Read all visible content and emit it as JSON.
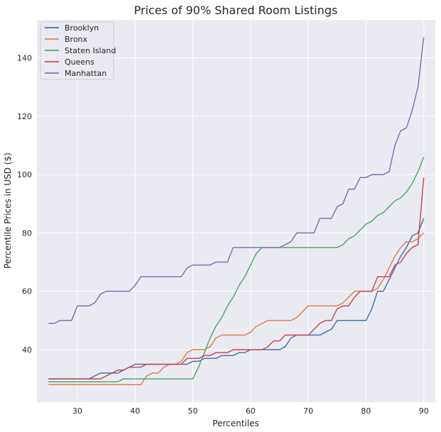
{
  "chart_data": {
    "type": "line",
    "title": "Prices of 90% Shared Room Listings",
    "xlabel": "Percentiles",
    "ylabel": "Percentile Prices in USD ($)",
    "xlim": [
      23,
      92
    ],
    "ylim": [
      22,
      153
    ],
    "xticks": [
      30,
      40,
      50,
      60,
      70,
      80,
      90
    ],
    "yticks": [
      40,
      60,
      80,
      100,
      120,
      140
    ],
    "grid": true,
    "legend_position": "top-left",
    "colors": {
      "background": "#eaeaf2",
      "grid": "#ffffff"
    },
    "x": [
      25,
      26,
      27,
      28,
      29,
      30,
      31,
      32,
      33,
      34,
      35,
      36,
      37,
      38,
      39,
      40,
      41,
      42,
      43,
      44,
      45,
      46,
      47,
      48,
      49,
      50,
      51,
      52,
      53,
      54,
      55,
      56,
      57,
      58,
      59,
      60,
      61,
      62,
      63,
      64,
      65,
      66,
      67,
      68,
      69,
      70,
      71,
      72,
      73,
      74,
      75,
      76,
      77,
      78,
      79,
      80,
      81,
      82,
      83,
      84,
      85,
      86,
      87,
      88,
      89,
      90
    ],
    "series": [
      {
        "name": "Brooklyn",
        "color": "#4c72b0",
        "values": [
          30,
          30,
          30,
          30,
          30,
          30,
          30,
          30,
          31,
          32,
          32,
          32,
          32,
          33,
          34,
          35,
          35,
          35,
          35,
          35,
          35,
          35,
          35,
          35,
          35,
          36,
          36,
          37,
          37,
          37,
          38,
          38,
          38,
          39,
          39,
          40,
          40,
          40,
          40,
          40,
          40,
          41,
          44,
          45,
          45,
          45,
          45,
          45,
          46,
          47,
          50,
          50,
          50,
          50,
          50,
          50,
          54,
          60,
          60,
          64,
          68,
          72,
          75,
          79,
          80,
          85
        ]
      },
      {
        "name": "Bronx",
        "color": "#dd8452",
        "values": [
          28,
          28,
          28,
          28,
          28,
          28,
          28,
          28,
          28,
          28,
          28,
          28,
          28,
          28,
          28,
          28,
          28,
          31,
          32,
          32,
          34,
          35,
          35,
          36,
          39,
          40,
          40,
          40,
          41,
          44,
          45,
          45,
          45,
          45,
          45,
          46,
          48,
          49,
          50,
          50,
          50,
          50,
          50,
          51,
          53,
          55,
          55,
          55,
          55,
          55,
          55,
          56,
          58,
          60,
          60,
          60,
          60,
          61,
          64,
          68,
          72,
          75,
          77,
          77,
          78,
          80
        ]
      },
      {
        "name": "Staten Island",
        "color": "#55a868",
        "values": [
          29,
          29,
          29,
          29,
          29,
          29,
          29,
          29,
          29,
          29,
          29,
          29,
          29,
          30,
          30,
          30,
          30,
          30,
          30,
          30,
          30,
          30,
          30,
          30,
          30,
          30,
          34,
          39,
          44,
          48,
          51,
          55,
          58,
          62,
          65,
          69,
          73,
          75,
          75,
          75,
          75,
          75,
          75,
          75,
          75,
          75,
          75,
          75,
          75,
          75,
          75,
          76,
          78,
          79,
          81,
          83,
          84,
          86,
          87,
          89,
          91,
          92,
          94,
          97,
          101,
          106
        ]
      },
      {
        "name": "Queens",
        "color": "#c44e52",
        "values": [
          30,
          30,
          30,
          30,
          30,
          30,
          30,
          30,
          30,
          30,
          31,
          32,
          33,
          33,
          34,
          34,
          34,
          35,
          35,
          35,
          35,
          35,
          35,
          35,
          37,
          37,
          37,
          38,
          38,
          39,
          39,
          39,
          40,
          40,
          40,
          40,
          40,
          40,
          41,
          43,
          43,
          45,
          45,
          45,
          45,
          45,
          47,
          49,
          50,
          50,
          54,
          55,
          55,
          58,
          60,
          60,
          60,
          65,
          65,
          65,
          69,
          70,
          73,
          75,
          76,
          99
        ]
      },
      {
        "name": "Manhattan",
        "color": "#8172b3",
        "values": [
          49,
          49,
          50,
          50,
          50,
          55,
          55,
          55,
          56,
          59,
          60,
          60,
          60,
          60,
          60,
          62,
          65,
          65,
          65,
          65,
          65,
          65,
          65,
          65,
          68,
          69,
          69,
          69,
          69,
          70,
          70,
          70,
          75,
          75,
          75,
          75,
          75,
          75,
          75,
          75,
          75,
          76,
          77,
          80,
          80,
          80,
          80,
          85,
          85,
          85,
          89,
          90,
          95,
          95,
          99,
          99,
          100,
          100,
          100,
          101,
          110,
          115,
          116,
          122,
          130,
          147
        ]
      }
    ]
  }
}
